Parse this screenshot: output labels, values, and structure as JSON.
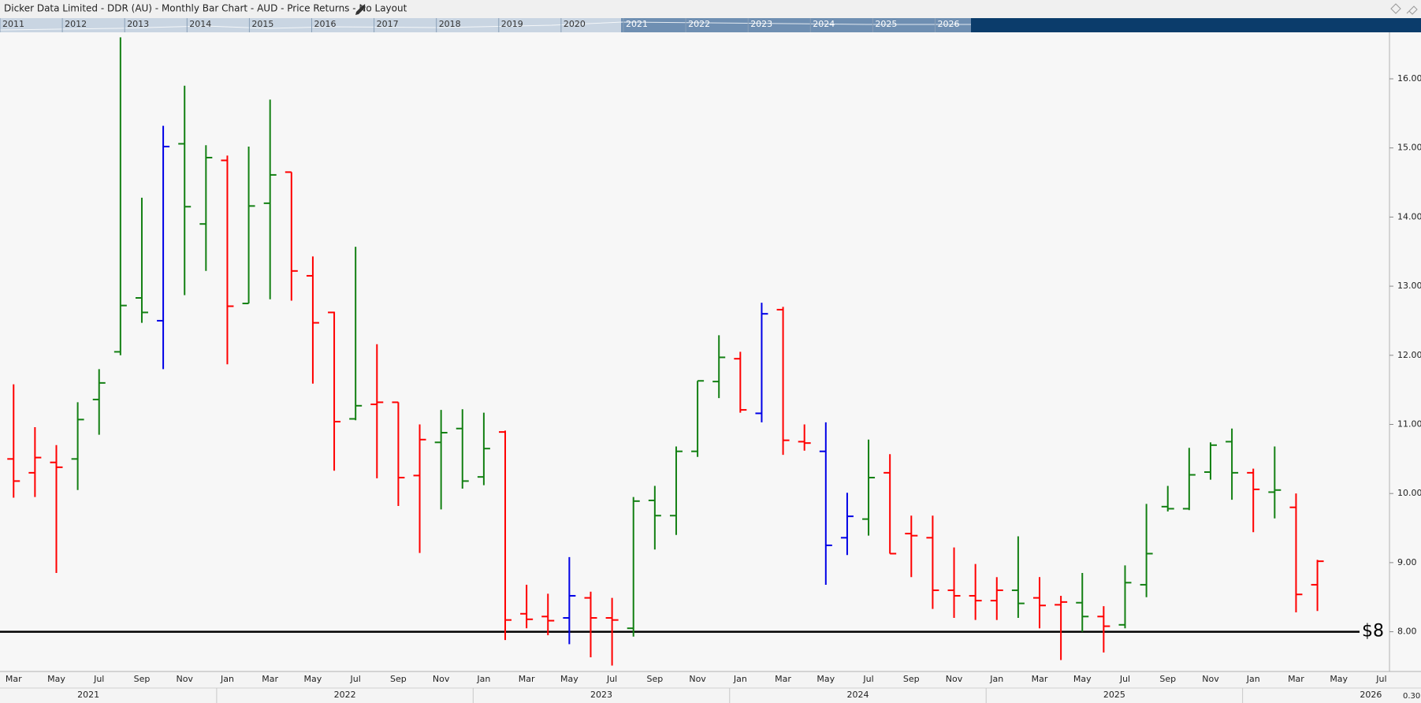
{
  "chart_data": {
    "type": "ohlc",
    "title": "Dicker Data Limited - DDR (AU) - Monthly Bar Chart - AUD - Price Returns - No Layout",
    "categories": [
      "Mar",
      null,
      "May",
      null,
      "Jul",
      null,
      "Sep",
      null,
      "Nov",
      null,
      "Jan",
      null,
      "Mar",
      null,
      "May",
      null,
      "Jul",
      null,
      "Sep",
      null,
      "Nov",
      null,
      "Jan",
      null,
      "Mar",
      null,
      "May",
      null,
      "Jul",
      null,
      "Sep",
      null,
      "Nov",
      null,
      "Jan",
      null,
      "Mar",
      null,
      "May",
      null,
      "Jul",
      null,
      "Sep",
      null,
      "Nov",
      null,
      "Jan",
      null,
      "Mar",
      null,
      "May",
      null,
      "Jul",
      null,
      "Sep",
      null,
      "Nov",
      null,
      "Jan",
      null,
      "Mar",
      null,
      "May",
      null,
      "Jul"
    ],
    "years": [
      "2021",
      "2022",
      "2023",
      "2024",
      "2025",
      "2026"
    ],
    "open": [
      10.5,
      10.3,
      10.45,
      10.5,
      11.36,
      12.05,
      12.83,
      12.5,
      15.06,
      13.9,
      14.82,
      12.75,
      14.2,
      14.65,
      13.15,
      12.62,
      11.08,
      11.29,
      11.32,
      10.26,
      10.74,
      10.94,
      10.24,
      10.89,
      8.26,
      8.22,
      8.2,
      8.49,
      8.2,
      8.05,
      9.9,
      9.68,
      10.61,
      11.62,
      11.95,
      11.16,
      12.66,
      10.75,
      10.61,
      9.36,
      9.63,
      10.3,
      9.42,
      9.36,
      8.6,
      8.52,
      8.45,
      8.6,
      8.49,
      8.39,
      8.42,
      8.22,
      8.1,
      8.68,
      9.81,
      9.78,
      10.31,
      10.75,
      10.3,
      10.02,
      9.8,
      8.68,
      null,
      null,
      null
    ],
    "high": [
      11.58,
      10.96,
      10.7,
      11.32,
      11.8,
      16.6,
      14.28,
      15.32,
      15.9,
      15.04,
      14.89,
      15.02,
      15.7,
      14.65,
      13.43,
      12.63,
      13.57,
      12.16,
      11.32,
      11.0,
      11.21,
      11.22,
      11.17,
      10.91,
      8.68,
      8.55,
      9.08,
      8.58,
      8.49,
      9.95,
      10.11,
      10.68,
      11.63,
      12.29,
      12.05,
      12.76,
      12.7,
      11.0,
      11.03,
      10.01,
      10.78,
      10.57,
      9.68,
      9.68,
      9.22,
      8.98,
      8.79,
      9.38,
      8.79,
      8.52,
      8.85,
      8.37,
      8.96,
      9.85,
      10.11,
      10.66,
      10.74,
      10.94,
      10.36,
      10.68,
      10.0,
      9.04,
      null,
      null,
      null
    ],
    "low": [
      9.94,
      9.95,
      8.85,
      10.05,
      10.85,
      12.0,
      12.47,
      11.8,
      12.87,
      13.22,
      11.87,
      12.75,
      12.81,
      12.79,
      11.59,
      10.33,
      11.06,
      10.22,
      9.82,
      9.14,
      9.77,
      10.07,
      10.12,
      7.88,
      8.05,
      7.95,
      7.82,
      7.63,
      7.51,
      7.93,
      9.19,
      9.4,
      10.53,
      11.38,
      11.17,
      11.03,
      10.56,
      10.62,
      8.68,
      9.11,
      9.39,
      9.13,
      8.79,
      8.33,
      8.2,
      8.17,
      8.17,
      8.2,
      8.05,
      7.59,
      8.0,
      7.7,
      8.05,
      8.5,
      9.74,
      9.76,
      10.2,
      9.91,
      9.44,
      9.64,
      8.28,
      8.3,
      null,
      null,
      null
    ],
    "close": [
      10.18,
      10.52,
      10.38,
      11.07,
      11.6,
      12.72,
      12.62,
      15.02,
      14.15,
      14.86,
      12.71,
      14.16,
      14.61,
      13.22,
      12.47,
      11.04,
      11.27,
      11.32,
      10.23,
      10.78,
      10.88,
      10.18,
      10.65,
      8.17,
      8.18,
      8.16,
      8.52,
      8.2,
      8.17,
      9.89,
      9.68,
      10.61,
      11.63,
      11.97,
      11.21,
      12.6,
      10.77,
      10.73,
      9.25,
      9.67,
      10.23,
      9.13,
      9.39,
      8.6,
      8.52,
      8.45,
      8.6,
      8.41,
      8.38,
      8.43,
      8.22,
      8.08,
      8.71,
      9.13,
      9.78,
      10.27,
      10.7,
      10.3,
      10.06,
      10.05,
      8.54,
      9.02,
      null,
      null,
      null
    ],
    "colors": [
      "#ff0000",
      "#ff0000",
      "#ff0000",
      "#138013",
      "#138013",
      "#138013",
      "#138013",
      "#0000e6",
      "#138013",
      "#138013",
      "#ff0000",
      "#138013",
      "#138013",
      "#ff0000",
      "#ff0000",
      "#ff0000",
      "#138013",
      "#ff0000",
      "#ff0000",
      "#ff0000",
      "#138013",
      "#138013",
      "#138013",
      "#ff0000",
      "#ff0000",
      "#ff0000",
      "#0000e6",
      "#ff0000",
      "#ff0000",
      "#138013",
      "#138013",
      "#138013",
      "#138013",
      "#138013",
      "#ff0000",
      "#0000e6",
      "#ff0000",
      "#ff0000",
      "#0000e6",
      "#0000e6",
      "#138013",
      "#ff0000",
      "#ff0000",
      "#ff0000",
      "#ff0000",
      "#ff0000",
      "#ff0000",
      "#138013",
      "#ff0000",
      "#ff0000",
      "#138013",
      "#ff0000",
      "#138013",
      "#138013",
      "#138013",
      "#138013",
      "#138013",
      "#138013",
      "#ff0000",
      "#138013",
      "#ff0000",
      "#ff0000",
      null,
      null,
      null
    ],
    "ylim": [
      7.425,
      16.673
    ],
    "yticks": [
      {
        "value": 8,
        "label": "8.00"
      },
      {
        "value": 9,
        "label": "9.00"
      },
      {
        "value": 10,
        "label": "10.00"
      },
      {
        "value": 11,
        "label": "11.00"
      },
      {
        "value": 12,
        "label": "12.00"
      },
      {
        "value": 13,
        "label": "13.00"
      },
      {
        "value": 14,
        "label": "14.00"
      },
      {
        "value": 15,
        "label": "15.00"
      },
      {
        "value": 16,
        "label": "16.00"
      }
    ],
    "hline": {
      "value": 8,
      "label": "$8"
    },
    "navigator_years": [
      "2011",
      "2012",
      "2013",
      "2014",
      "2015",
      "2016",
      "2017",
      "2018",
      "2019",
      "2020",
      "2021",
      "2022",
      "2023",
      "2024",
      "2025",
      "2026"
    ],
    "corner_label": "0.30"
  }
}
